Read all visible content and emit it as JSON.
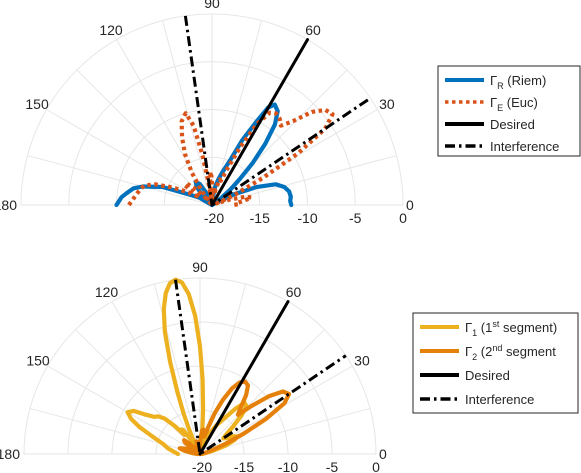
{
  "chart_data": [
    {
      "type": "polar-line",
      "r_ticks": [
        "-20",
        "-15",
        "-10",
        "-5",
        "0"
      ],
      "r_range": [
        -20,
        0
      ],
      "theta_ticks": [
        "0",
        "30",
        "60",
        "90",
        "120",
        "150",
        "180"
      ],
      "theta_range": [
        0,
        180
      ],
      "grid": true,
      "legend_position": "right",
      "legend": [
        {
          "base": "Γ",
          "sub": "R",
          "sup": "",
          "rest": " (Riem)",
          "color": "#0072BD",
          "dash": "solid"
        },
        {
          "base": "Γ",
          "sub": "E",
          "sup": "",
          "rest": " (Euc)",
          "color": "#D95319",
          "dash": "dotted"
        },
        {
          "base": "",
          "sub": "",
          "sup": "",
          "rest": "Desired",
          "color": "#000000",
          "dash": "solid"
        },
        {
          "base": "",
          "sub": "",
          "sup": "",
          "rest": "Interference",
          "color": "#000000",
          "dash": "dashdot"
        }
      ],
      "series": [
        {
          "key": "riem",
          "color": "#0072BD",
          "dash": "solid",
          "width": 4.2,
          "points": [
            [
              180,
              -10
            ],
            [
              175,
              -10.5
            ],
            [
              172,
              -11
            ],
            [
              168,
              -11.6
            ],
            [
              165,
              -12.5
            ],
            [
              160,
              -14.5
            ],
            [
              155,
              -17.5
            ],
            [
              150,
              -18.5
            ],
            [
              145,
              -20
            ],
            [
              140,
              -19.5
            ],
            [
              135,
              -18.5
            ],
            [
              130,
              -17.5
            ],
            [
              125,
              -17
            ],
            [
              120,
              -17.5
            ],
            [
              116,
              -18.5
            ],
            [
              112,
              -19.3
            ],
            [
              108,
              -20
            ],
            [
              104,
              -19.5
            ],
            [
              100,
              -19
            ],
            [
              96,
              -18.7
            ],
            [
              92,
              -19.1
            ],
            [
              88,
              -19.8
            ],
            [
              84,
              -19.2
            ],
            [
              80,
              -18
            ],
            [
              76,
              -17.2
            ],
            [
              72,
              -16.3
            ],
            [
              68,
              -15
            ],
            [
              65,
              -12.5
            ],
            [
              62,
              -10.2
            ],
            [
              60,
              -8.2
            ],
            [
              58,
              -7.6
            ],
            [
              55,
              -8
            ],
            [
              52,
              -9.3
            ],
            [
              49,
              -11.5
            ],
            [
              46,
              -13.8
            ],
            [
              43,
              -16
            ],
            [
              40,
              -17.5
            ],
            [
              37,
              -18.8
            ],
            [
              34,
              -20
            ],
            [
              30,
              -19.3
            ],
            [
              26,
              -17.5
            ],
            [
              22,
              -15
            ],
            [
              18,
              -13
            ],
            [
              14,
              -12.2
            ],
            [
              10,
              -11.8
            ],
            [
              6,
              -11.7
            ],
            [
              3,
              -11.8
            ],
            [
              0,
              -11.7
            ]
          ]
        },
        {
          "key": "euc",
          "color": "#D95319",
          "dash": "dotted",
          "width": 4.2,
          "points": [
            [
              180,
              -11.3
            ],
            [
              176,
              -11.7
            ],
            [
              172,
              -12
            ],
            [
              168,
              -12.3
            ],
            [
              164,
              -12.6
            ],
            [
              160,
              -13.7
            ],
            [
              156,
              -15.5
            ],
            [
              152,
              -17.2
            ],
            [
              148,
              -18.5
            ],
            [
              144,
              -16.5
            ],
            [
              140,
              -16.5
            ],
            [
              136,
              -17.5
            ],
            [
              133,
              -18.8
            ],
            [
              130,
              -19.8
            ],
            [
              126,
              -18.2
            ],
            [
              122,
              -16
            ],
            [
              118,
              -14
            ],
            [
              114,
              -12.3
            ],
            [
              110,
              -10.7
            ],
            [
              106,
              -10
            ],
            [
              103,
              -11.5
            ],
            [
              101,
              -14.5
            ],
            [
              99,
              -17.5
            ],
            [
              97,
              -19.5
            ],
            [
              95,
              -18
            ],
            [
              93,
              -16.5
            ],
            [
              91,
              -17
            ],
            [
              89,
              -18.2
            ],
            [
              87,
              -19.3
            ],
            [
              85,
              -18.5
            ],
            [
              82,
              -18.2
            ],
            [
              79,
              -18.8
            ],
            [
              76,
              -18
            ],
            [
              73,
              -17.2
            ],
            [
              70,
              -17.3
            ],
            [
              67,
              -15.8
            ],
            [
              64,
              -13.2
            ],
            [
              61,
              -10.3
            ],
            [
              58,
              -8.6
            ],
            [
              55,
              -8.3
            ],
            [
              52,
              -8.5
            ],
            [
              49,
              -9
            ],
            [
              46,
              -7.8
            ],
            [
              43,
              -5.7
            ],
            [
              40,
              -4.5
            ],
            [
              37,
              -4.2
            ],
            [
              34,
              -5.7
            ],
            [
              31,
              -9.5
            ],
            [
              28,
              -14
            ],
            [
              24,
              -17.5
            ],
            [
              20,
              -19.5
            ],
            [
              17,
              -18
            ],
            [
              14,
              -16.5
            ],
            [
              11,
              -15.8
            ],
            [
              8,
              -16.5
            ],
            [
              5,
              -17.3
            ],
            [
              2,
              -17.2
            ],
            [
              0,
              -17.8
            ]
          ]
        },
        {
          "key": "desired",
          "color": "#000000",
          "dash": "solid",
          "width": 3,
          "points": [
            [
              60,
              0
            ],
            [
              60,
              -20
            ]
          ]
        },
        {
          "key": "interference",
          "color": "#000000",
          "dash": "dashdot",
          "width": 3,
          "points": [
            [
              98,
              0
            ],
            [
              98,
              -20
            ],
            [
              34,
              -20
            ],
            [
              34,
              0
            ]
          ]
        }
      ]
    },
    {
      "type": "polar-line",
      "r_ticks": [
        "-20",
        "-15",
        "-10",
        "-5",
        "0"
      ],
      "r_range": [
        -20,
        0
      ],
      "theta_ticks": [
        "0",
        "30",
        "60",
        "90",
        "120",
        "150",
        "180"
      ],
      "theta_range": [
        0,
        180
      ],
      "grid": true,
      "legend_position": "right",
      "legend": [
        {
          "base": "Γ",
          "sub": "1",
          "sup": "st",
          "rest": " segment)",
          "pre": " (1",
          "color": "#EDB120",
          "dash": "solid"
        },
        {
          "base": "Γ",
          "sub": "2",
          "sup": "nd",
          "rest": " segment",
          "pre": " (2",
          "color": "#E5810A",
          "dash": "solid"
        },
        {
          "base": "",
          "sub": "",
          "sup": "",
          "rest": "Desired",
          "pre": "",
          "color": "#000000",
          "dash": "solid"
        },
        {
          "base": "",
          "sub": "",
          "sup": "",
          "rest": "Interference",
          "pre": "",
          "color": "#000000",
          "dash": "dashdot"
        }
      ],
      "series": [
        {
          "key": "seg1",
          "color": "#EDB120",
          "dash": "solid",
          "width": 4.2,
          "points": [
            [
              180,
              -17.5
            ],
            [
              175,
              -17
            ],
            [
              170,
              -16.3
            ],
            [
              165,
              -15.7
            ],
            [
              160,
              -14.3
            ],
            [
              156,
              -12.5
            ],
            [
              153,
              -11.2
            ],
            [
              150,
              -10.5
            ],
            [
              147,
              -11
            ],
            [
              144,
              -12.4
            ],
            [
              141,
              -13.3
            ],
            [
              138,
              -13.6
            ],
            [
              135,
              -14.3
            ],
            [
              132,
              -15.7
            ],
            [
              129,
              -17.2
            ],
            [
              127,
              -16.5
            ],
            [
              125,
              -16.7
            ],
            [
              123,
              -18
            ],
            [
              121,
              -19.3
            ],
            [
              118,
              -19.6
            ],
            [
              116,
              -18.5
            ],
            [
              114,
              -17
            ],
            [
              112,
              -15
            ],
            [
              110,
              -12.5
            ],
            [
              108,
              -9
            ],
            [
              106,
              -5.5
            ],
            [
              104,
              -3
            ],
            [
              102,
              -1.3
            ],
            [
              100,
              -0.3
            ],
            [
              98,
              0
            ],
            [
              96,
              -0.4
            ],
            [
              94,
              -1.8
            ],
            [
              92,
              -4.3
            ],
            [
              90,
              -7.8
            ],
            [
              88,
              -11.5
            ],
            [
              86,
              -15
            ],
            [
              84,
              -17.5
            ],
            [
              82,
              -19.2
            ],
            [
              80,
              -20
            ],
            [
              76,
              -19.5
            ],
            [
              72,
              -18.3
            ],
            [
              68,
              -17.7
            ],
            [
              64,
              -17.2
            ],
            [
              60,
              -16.2
            ],
            [
              56,
              -15.2
            ],
            [
              52,
              -13.5
            ],
            [
              49,
              -12.3
            ],
            [
              46,
              -12.4
            ],
            [
              43,
              -13.5
            ],
            [
              40,
              -15
            ],
            [
              37,
              -16.2
            ],
            [
              34,
              -16.8
            ],
            [
              31,
              -16.5
            ],
            [
              28,
              -15.7
            ],
            [
              25,
              -15.3
            ],
            [
              22,
              -15.8
            ],
            [
              18,
              -17
            ],
            [
              14,
              -18.5
            ],
            [
              10,
              -19.3
            ],
            [
              6,
              -19.8
            ],
            [
              3,
              -19.9
            ],
            [
              0,
              -20
            ]
          ]
        },
        {
          "key": "seg2",
          "color": "#E5810A",
          "dash": "solid",
          "width": 4.2,
          "points": [
            [
              180,
              -19.7
            ],
            [
              173,
              -19.1
            ],
            [
              168,
              -18.2
            ],
            [
              164,
              -17.6
            ],
            [
              160,
              -18.2
            ],
            [
              156,
              -19.1
            ],
            [
              152,
              -19.7
            ],
            [
              148,
              -19.5
            ],
            [
              145,
              -18.6
            ],
            [
              142,
              -17.8
            ],
            [
              139,
              -17.6
            ],
            [
              136,
              -18.2
            ],
            [
              132,
              -19
            ],
            [
              128,
              -19.6
            ],
            [
              124,
              -19.8
            ],
            [
              120,
              -19.6
            ],
            [
              116,
              -19.8
            ],
            [
              112,
              -20
            ],
            [
              109,
              -19.2
            ],
            [
              106,
              -18.5
            ],
            [
              103,
              -18.6
            ],
            [
              100,
              -19.2
            ],
            [
              97,
              -19.8
            ],
            [
              94,
              -19.6
            ],
            [
              91,
              -19
            ],
            [
              88,
              -18.3
            ],
            [
              85,
              -17.3
            ],
            [
              82,
              -17.2
            ],
            [
              79,
              -18
            ],
            [
              76,
              -17.9
            ],
            [
              73,
              -16.8
            ],
            [
              70,
              -15
            ],
            [
              67,
              -13.3
            ],
            [
              64,
              -11.7
            ],
            [
              61,
              -10.7
            ],
            [
              58,
              -10.3
            ],
            [
              55,
              -10.5
            ],
            [
              52,
              -11.5
            ],
            [
              49,
              -12.9
            ],
            [
              46,
              -13.8
            ],
            [
              43,
              -12
            ],
            [
              40,
              -9.8
            ],
            [
              37,
              -8.2
            ],
            [
              34,
              -7.8
            ],
            [
              31,
              -8.8
            ],
            [
              28,
              -11.5
            ],
            [
              25,
              -14.5
            ],
            [
              22,
              -16.8
            ],
            [
              18,
              -18.5
            ],
            [
              14,
              -19.2
            ],
            [
              10,
              -19.6
            ],
            [
              6,
              -19.8
            ],
            [
              0,
              -20
            ]
          ]
        },
        {
          "key": "desired",
          "color": "#000000",
          "dash": "solid",
          "width": 3,
          "points": [
            [
              60,
              0
            ],
            [
              60,
              -20
            ]
          ]
        },
        {
          "key": "interference",
          "color": "#000000",
          "dash": "dashdot",
          "width": 3,
          "points": [
            [
              98,
              0
            ],
            [
              98,
              -20
            ],
            [
              34,
              -20
            ],
            [
              34,
              0
            ]
          ]
        }
      ]
    }
  ]
}
